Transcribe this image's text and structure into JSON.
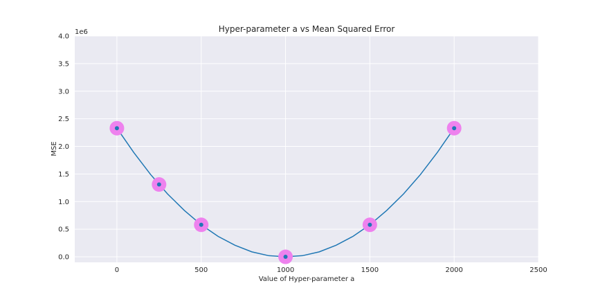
{
  "chart_data": {
    "type": "line",
    "title": "Hyper-parameter a vs Mean Squared Error",
    "xlabel": "Value of Hyper-parameter a",
    "ylabel": "MSE",
    "y_offset_label": "1e6",
    "xlim": [
      -250,
      2500
    ],
    "ylim": [
      -0.1,
      4.0
    ],
    "x_ticks": [
      0,
      500,
      1000,
      1500,
      2000,
      2500
    ],
    "y_ticks": [
      0.0,
      0.5,
      1.0,
      1.5,
      2.0,
      2.5,
      3.0,
      3.5,
      4.0
    ],
    "grid": true,
    "series": [
      {
        "kind": "curve",
        "color": "#1f77b4",
        "x": [
          0,
          100,
          200,
          300,
          400,
          500,
          600,
          700,
          800,
          900,
          1000,
          1100,
          1200,
          1300,
          1400,
          1500,
          1600,
          1700,
          1800,
          1900,
          2000
        ],
        "y": [
          2.33,
          1.89,
          1.49,
          1.14,
          0.84,
          0.58,
          0.37,
          0.21,
          0.09,
          0.02,
          0.0,
          0.02,
          0.09,
          0.21,
          0.37,
          0.58,
          0.84,
          1.14,
          1.49,
          1.89,
          2.33
        ]
      },
      {
        "kind": "points",
        "color": "#ee82ee",
        "inner_color": "#1f77b4",
        "x": [
          0,
          250,
          500,
          1000,
          1500,
          2000
        ],
        "y": [
          2.33,
          1.31,
          0.58,
          0.0,
          0.58,
          2.33
        ]
      }
    ]
  }
}
